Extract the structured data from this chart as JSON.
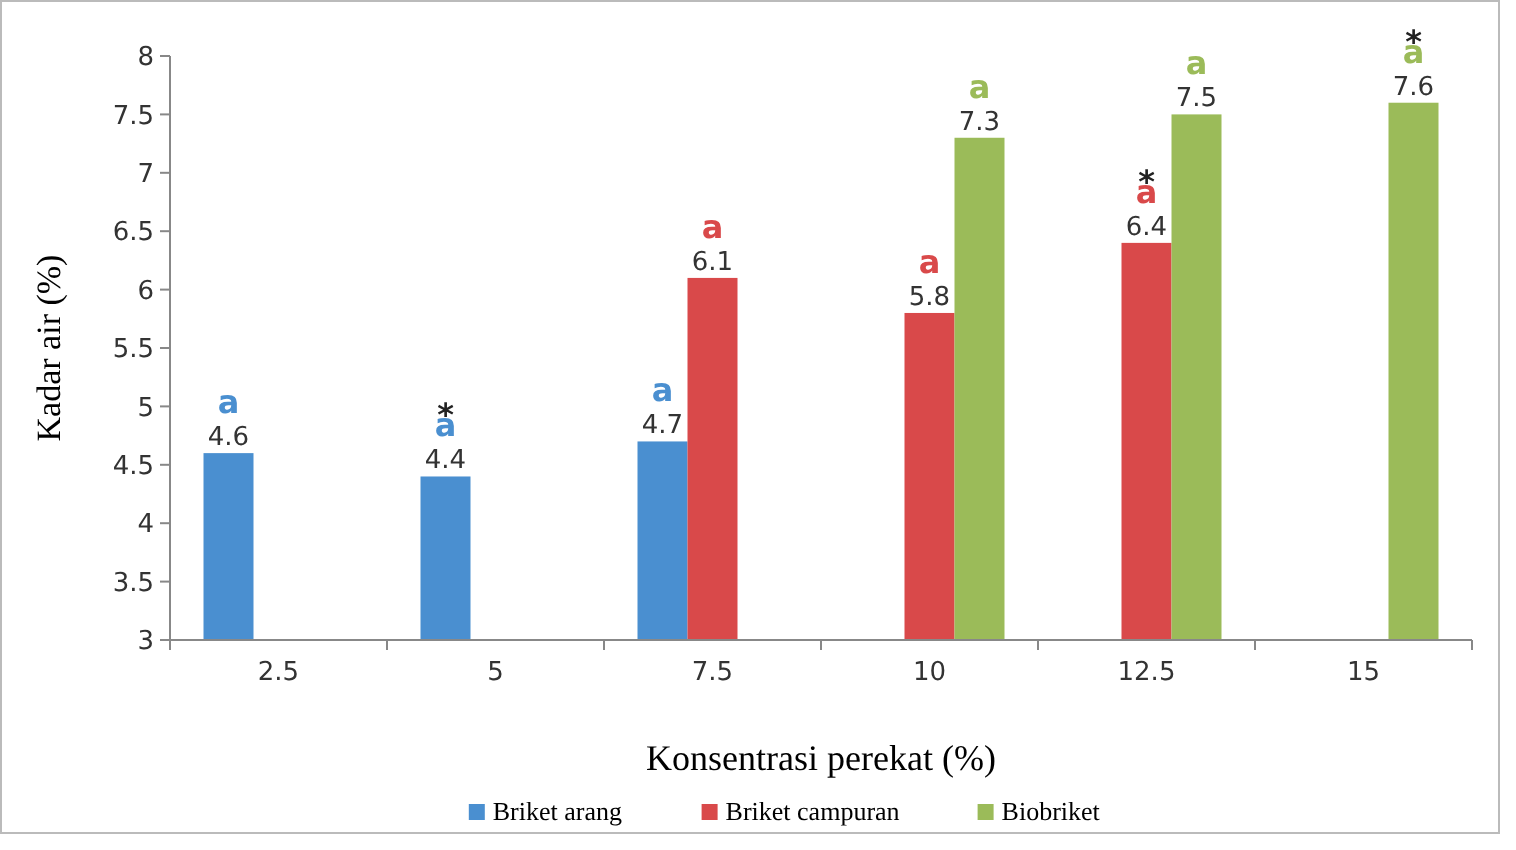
{
  "chart_data": {
    "type": "bar",
    "xlabel": "Konsentrasi perekat (%)",
    "ylabel": "Kadar air (%)",
    "categories": [
      "2.5",
      "5",
      "7.5",
      "10",
      "12.5",
      "15"
    ],
    "series": [
      {
        "name": "Briket arang",
        "color": "#4a8fd0",
        "values": [
          4.6,
          4.4,
          4.7,
          null,
          null,
          null
        ]
      },
      {
        "name": "Briket campuran",
        "color": "#d9494a",
        "values": [
          null,
          null,
          6.1,
          5.8,
          6.4,
          null
        ]
      },
      {
        "name": "Biobriket",
        "color": "#9bbb59",
        "values": [
          null,
          null,
          null,
          7.3,
          7.5,
          7.6
        ]
      }
    ],
    "ylim": [
      3,
      8
    ],
    "yticks": [
      3,
      3.5,
      4,
      4.5,
      5,
      5.5,
      6,
      6.5,
      7,
      7.5,
      8
    ],
    "grid": false,
    "legend": "bottom",
    "data_labels": true,
    "annotations": [
      "a",
      "*a",
      "a",
      "a",
      "a",
      "a",
      "*a",
      "a",
      "*a"
    ]
  }
}
